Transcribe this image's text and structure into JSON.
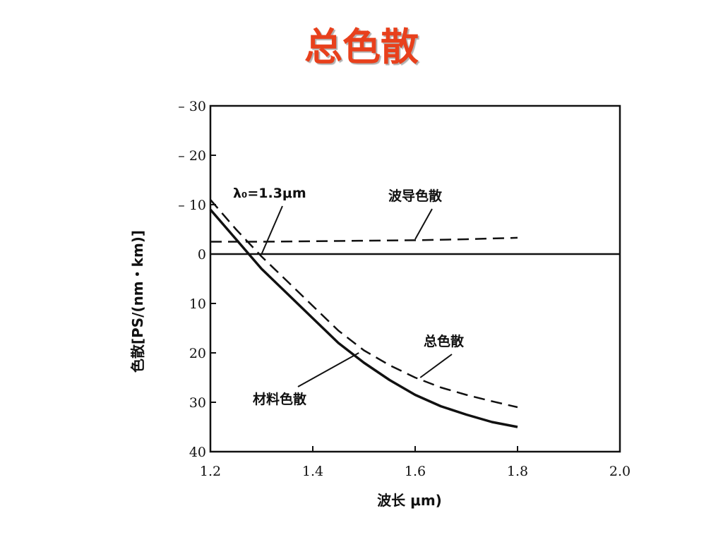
{
  "page": {
    "title": "总色散"
  },
  "chart_data": {
    "type": "line",
    "xlabel": "波长 μm)",
    "ylabel": "色散[PS/(nm・km)]",
    "xlim": [
      1.2,
      2.0
    ],
    "ylim": [
      40,
      -30
    ],
    "x_ticks": [
      "1.2",
      "1.4",
      "1.6",
      "1.8",
      "2.0"
    ],
    "y_ticks": [
      {
        "value": -30,
        "label": "– 30"
      },
      {
        "value": -20,
        "label": "– 20"
      },
      {
        "value": -10,
        "label": "– 10"
      },
      {
        "value": 0,
        "label": "0"
      },
      {
        "value": 10,
        "label": "10"
      },
      {
        "value": 20,
        "label": "20"
      },
      {
        "value": 30,
        "label": "30"
      },
      {
        "value": 40,
        "label": "40"
      }
    ],
    "series": [
      {
        "name": "材料色散",
        "style": "solid",
        "x": [
          1.2,
          1.25,
          1.3,
          1.35,
          1.4,
          1.45,
          1.5,
          1.55,
          1.6,
          1.65,
          1.7,
          1.75,
          1.8
        ],
        "y": [
          -9,
          -3,
          3,
          8,
          13,
          18,
          22,
          25.5,
          28.5,
          30.8,
          32.5,
          34,
          35
        ]
      },
      {
        "name": "波导色散",
        "style": "dashed",
        "x": [
          1.2,
          1.3,
          1.4,
          1.5,
          1.6,
          1.7,
          1.8
        ],
        "y": [
          -2.5,
          -2.5,
          -2.6,
          -2.7,
          -2.8,
          -3.0,
          -3.3
        ]
      },
      {
        "name": "总色散",
        "style": "dashed",
        "x": [
          1.2,
          1.25,
          1.3,
          1.35,
          1.4,
          1.45,
          1.5,
          1.55,
          1.6,
          1.65,
          1.7,
          1.75,
          1.8
        ],
        "y": [
          -11,
          -5,
          0.5,
          5.5,
          10.5,
          15.5,
          19.5,
          22.5,
          25,
          27,
          28.5,
          29.8,
          31
        ]
      },
      {
        "name": "zero-line",
        "style": "solid",
        "x": [
          1.2,
          2.0
        ],
        "y": [
          0,
          0
        ]
      }
    ],
    "annotations": [
      {
        "text": "λ₀=1.3μm",
        "points_to": {
          "x": 1.3,
          "y": 0
        }
      },
      {
        "text": "波导色散",
        "points_to": {
          "x": 1.6,
          "y": -3
        }
      },
      {
        "text": "总色散",
        "points_to": {
          "x": 1.61,
          "y": 25
        }
      },
      {
        "text": "材料色散",
        "points_to": {
          "x": 1.49,
          "y": 20
        }
      }
    ],
    "grid": false,
    "legend": "none"
  }
}
